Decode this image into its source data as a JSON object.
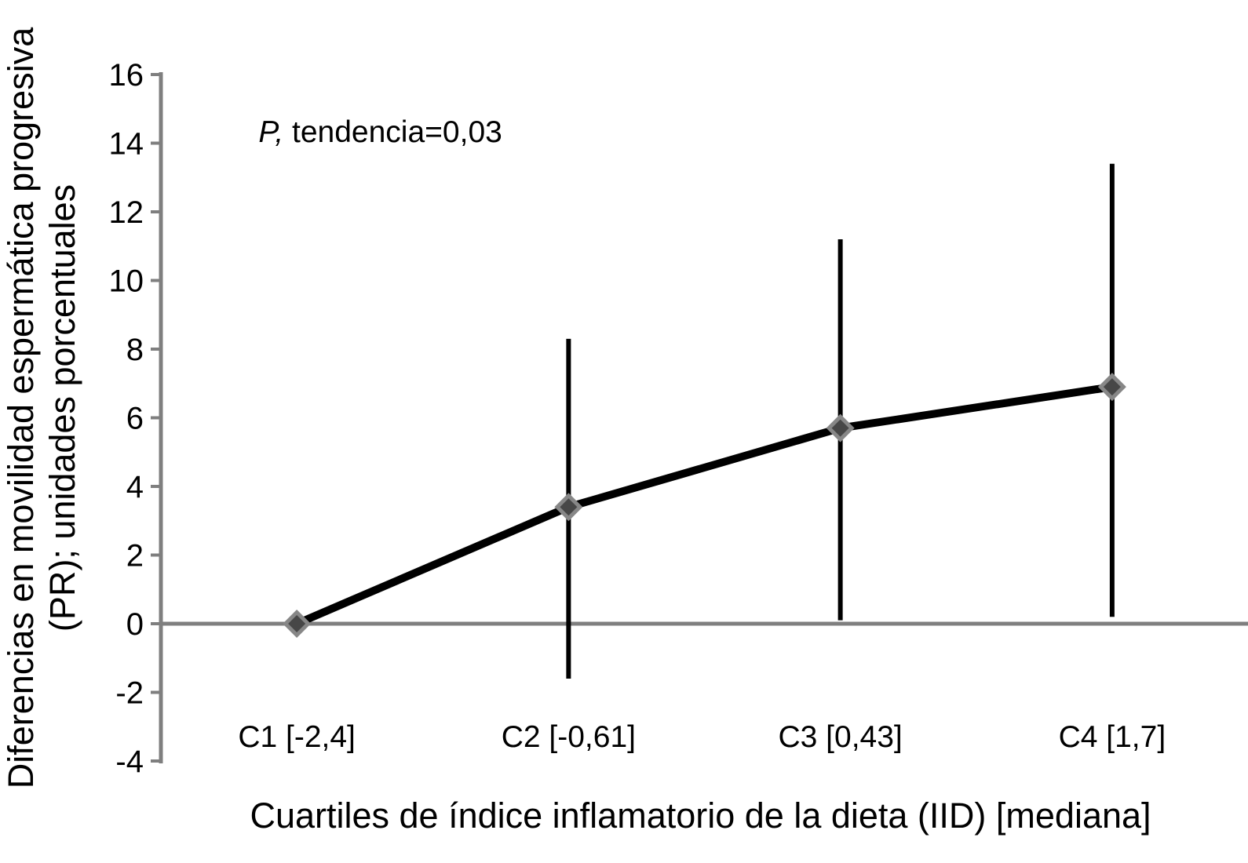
{
  "figure": {
    "annotation_parts": {
      "italic": "P,",
      "rest": " tendencia=0,03"
    },
    "y_axis_title_lines": {
      "line1": "Diferencias en movilidad espermática progresiva",
      "line2": "(PR); unidades porcentuales"
    }
  },
  "colors": {
    "axis_gray": "#7f7f7f",
    "zero_line_gray": "#7f7f7f",
    "series_black": "#000000",
    "marker_outer_gray": "#878787",
    "marker_inner_gray": "#474747",
    "text_black": "#000000"
  },
  "chart_data": {
    "type": "line",
    "categories": [
      "C1 [-2,4]",
      "C2 [-0,61]",
      "C3 [0,43]",
      "C4 [1,7]"
    ],
    "series": [
      {
        "name": "Diferencia en movilidad espermática progresiva (PR)",
        "values": [
          0,
          3.4,
          5.7,
          6.9
        ],
        "ci_low": [
          null,
          -1.6,
          0.1,
          0.2
        ],
        "ci_high": [
          null,
          8.3,
          11.2,
          13.4
        ]
      }
    ],
    "title": "",
    "xlabel": "Cuartiles de índice inflamatorio de la dieta (IID) [mediana]",
    "ylabel": "Diferencias en movilidad espermática progresiva (PR); unidades porcentuales",
    "annotation": "P, tendencia=0,03",
    "ylim": [
      -4,
      16
    ],
    "yticks": [
      16,
      14,
      12,
      10,
      8,
      6,
      4,
      2,
      0,
      -2,
      -4
    ],
    "reference_category_index": 0,
    "marker": "diamond",
    "error_bars": true,
    "error_bar_caps": false,
    "zero_reference_line": true,
    "grid": false,
    "legend": false
  }
}
